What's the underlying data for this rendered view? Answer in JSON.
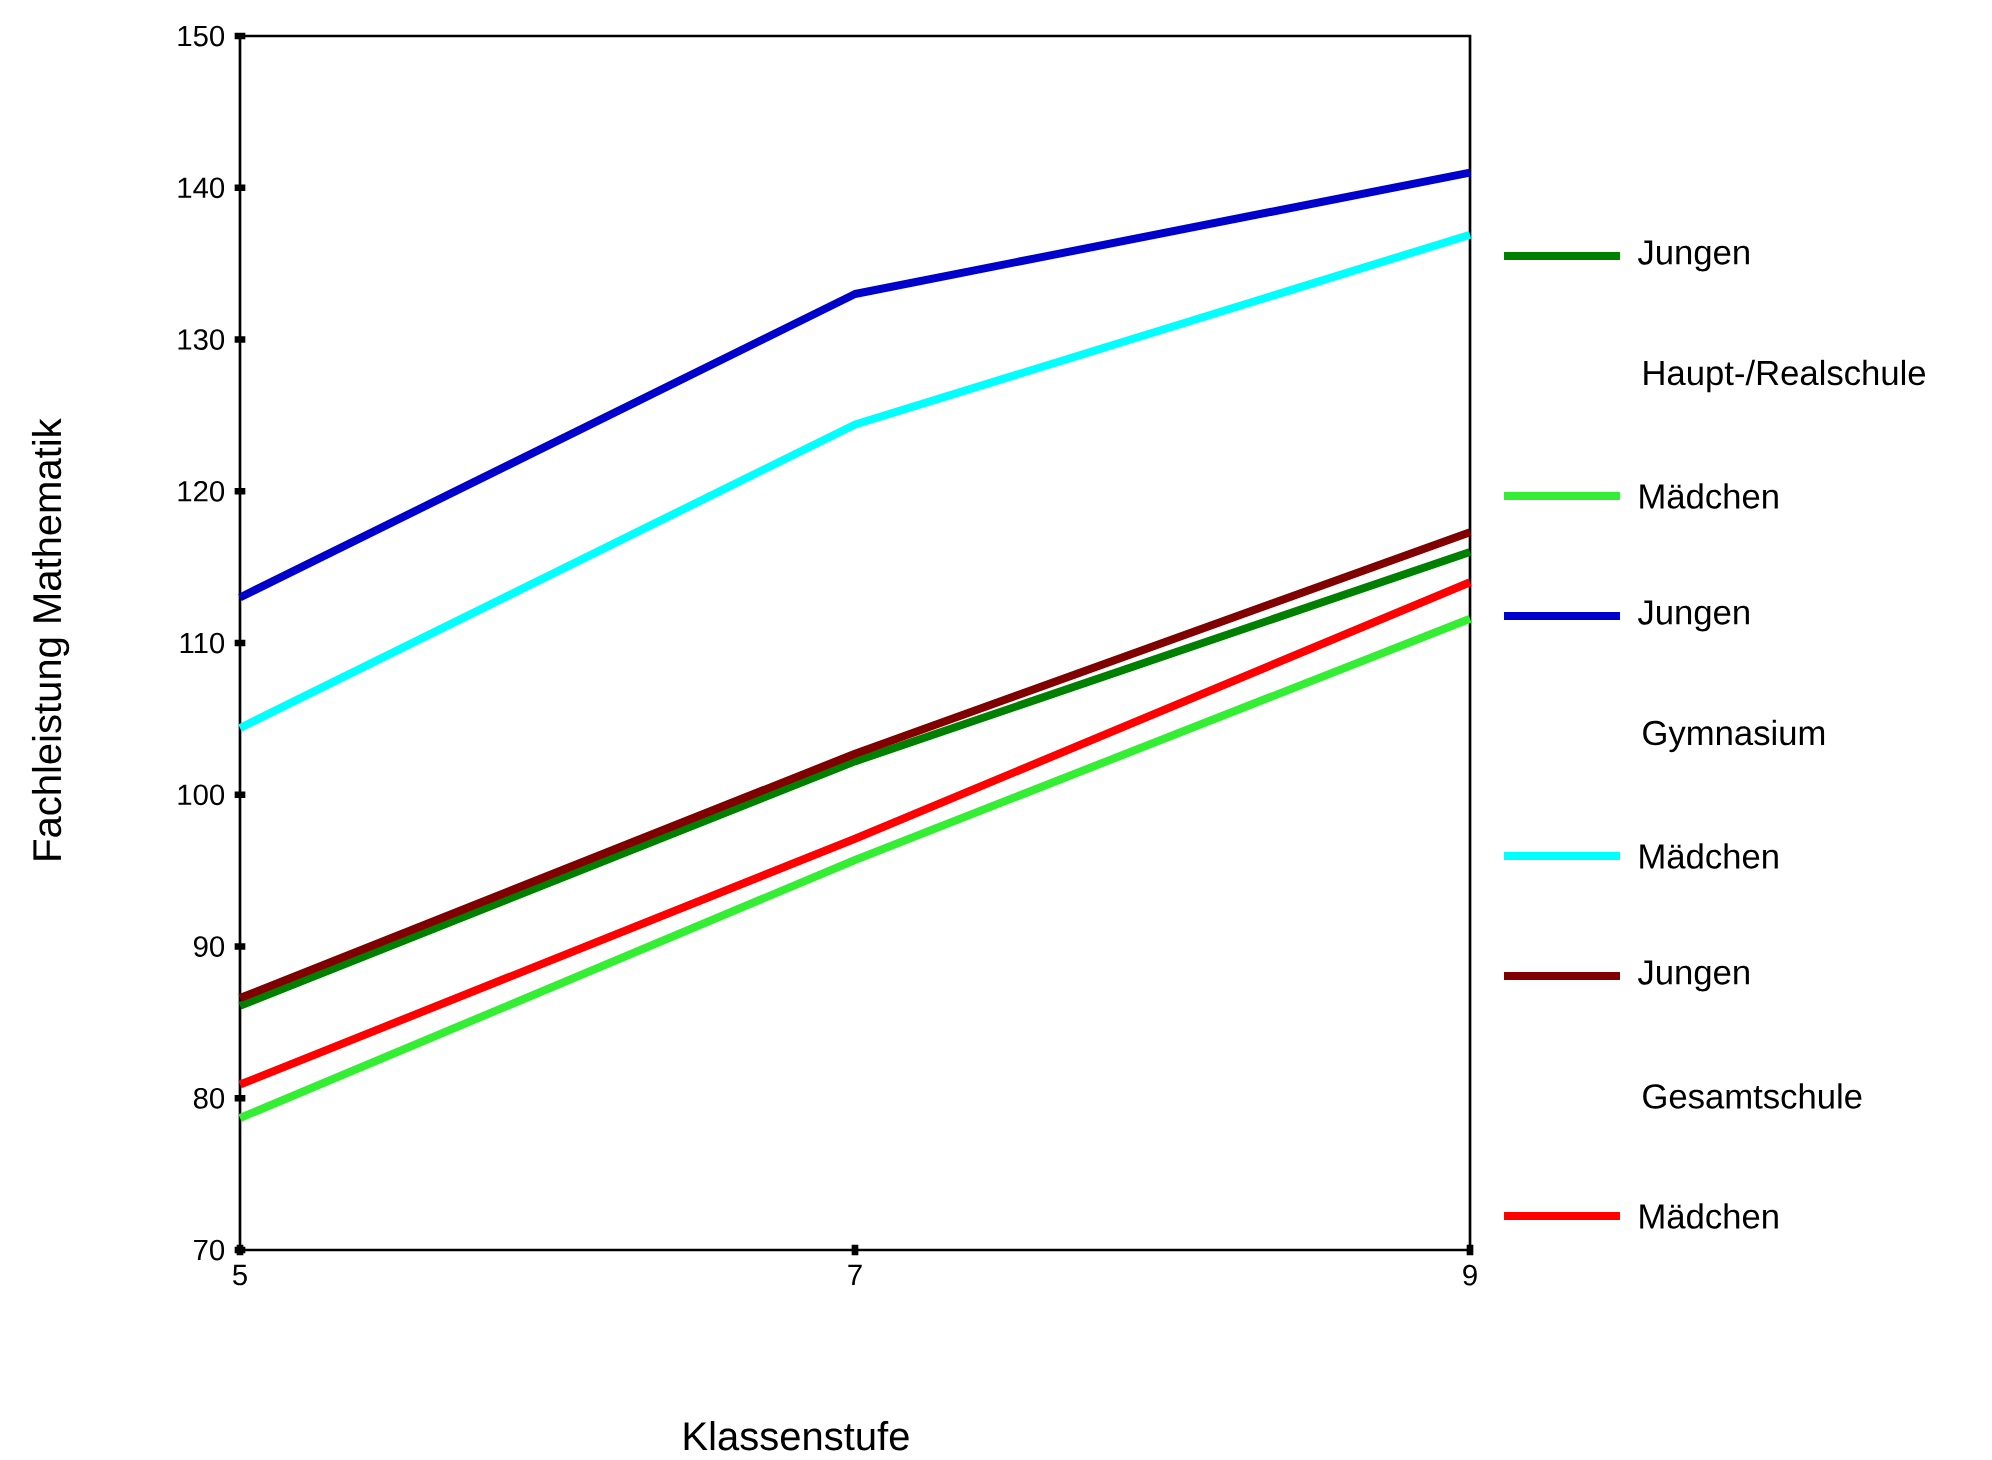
{
  "chart_data": {
    "type": "line",
    "xlabel": "Klassenstufe",
    "ylabel": "Fachleistung Mathematik",
    "x": [
      5,
      7,
      9
    ],
    "xlim": [
      5,
      9
    ],
    "xticks": [
      5,
      7,
      9
    ],
    "ylim": [
      70,
      150
    ],
    "yticks": [
      70,
      80,
      90,
      100,
      110,
      120,
      130,
      140,
      150
    ],
    "series": [
      {
        "name": "Jungen",
        "color": "#008000",
        "values": [
          86.1,
          102.2,
          116
        ]
      },
      {
        "name": "Mädchen",
        "color": "#33ee33",
        "values": [
          78.7,
          95.7,
          111.6
        ]
      },
      {
        "name": "Jungen",
        "color": "#0000cc",
        "values": [
          113,
          133,
          141
        ]
      },
      {
        "name": "Mädchen",
        "color": "#00ffff",
        "values": [
          104.4,
          124.4,
          136.9
        ]
      },
      {
        "name": "Jungen",
        "color": "#800000",
        "values": [
          86.6,
          102.7,
          117.3
        ]
      },
      {
        "name": "Mädchen",
        "color": "#ff0000",
        "values": [
          80.9,
          97.1,
          114
        ]
      }
    ],
    "annotations": [
      "Haupt-/Realschule",
      "Gymnasium",
      "Gesamtschule"
    ],
    "legend": "right",
    "grid": false,
    "marker": "none",
    "line_style": "solid"
  }
}
